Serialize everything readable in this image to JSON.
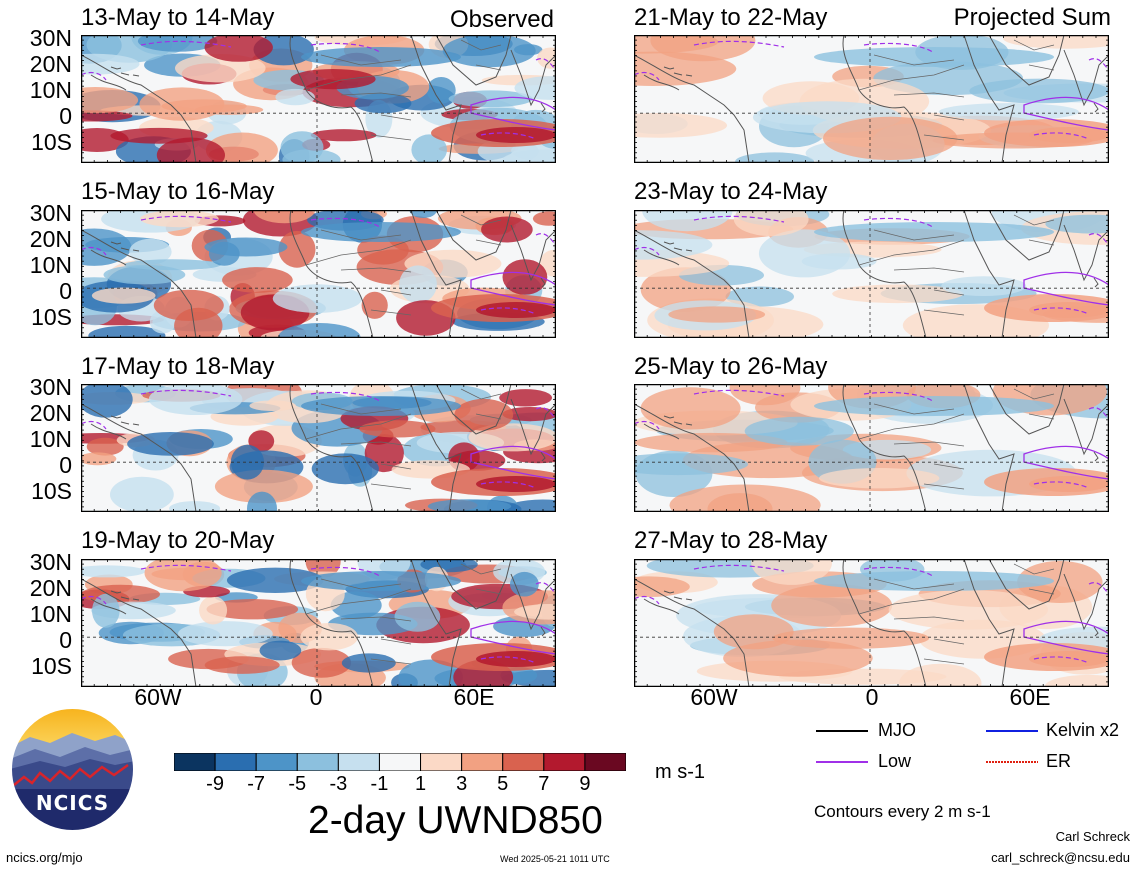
{
  "left_column": {
    "tag": "Observed",
    "panels": [
      "13-May to 14-May",
      "15-May to 16-May",
      "17-May to 18-May",
      "19-May to 20-May"
    ]
  },
  "right_column": {
    "tag": "Projected Sum",
    "panels": [
      "21-May to 22-May",
      "23-May to 24-May",
      "25-May to 26-May",
      "27-May to 28-May"
    ]
  },
  "lat_labels": [
    "30N",
    "20N",
    "10N",
    "0",
    "10S"
  ],
  "lon_labels": [
    "60W",
    "0",
    "60E"
  ],
  "colorbar": {
    "labels": [
      "-9",
      "-7",
      "-5",
      "-3",
      "-1",
      "1",
      "3",
      "5",
      "7",
      "9"
    ],
    "colors": [
      "#0b3460",
      "#2a6eb0",
      "#4d94c8",
      "#8cc0de",
      "#c6e0ef",
      "#f6f7f8",
      "#fbd9c6",
      "#f2a182",
      "#d9624f",
      "#b3192e",
      "#6a0821"
    ],
    "units": "m s-1",
    "title": "2-day UWND850"
  },
  "legend": {
    "items": [
      {
        "label": "MJO",
        "color": "#000000",
        "style": "solid"
      },
      {
        "label": "Kelvin x2",
        "color": "#1020e0",
        "style": "solid"
      },
      {
        "label": "Low",
        "color": "#a030e8",
        "style": "solid"
      },
      {
        "label": "ER",
        "color": "#e02010",
        "style": "dotted"
      }
    ],
    "contours_note": "Contours every 2 m s-1"
  },
  "footer": {
    "logo_text": "NCICS",
    "left_link": "ncics.org/mjo",
    "timestamp": "Wed 2025-05-21 1011 UTC",
    "author": "Carl Schreck",
    "email": "carl_schreck@ncsu.edu"
  }
}
